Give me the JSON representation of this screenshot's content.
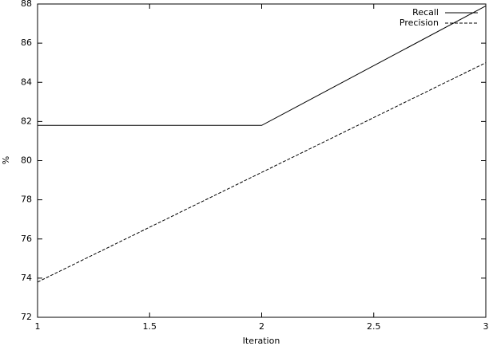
{
  "chart_data": {
    "type": "line",
    "x_label": "Iteration",
    "y_label": "%",
    "x": [
      1,
      2,
      3
    ],
    "series": [
      {
        "name": "Recall",
        "color": "#000000",
        "dash": "solid",
        "values": [
          81.8,
          81.8,
          87.9
        ]
      },
      {
        "name": "Precision",
        "color": "#000000",
        "dash": "dashed",
        "values": [
          73.8,
          79.4,
          85.0
        ]
      }
    ],
    "xlim": [
      1,
      3
    ],
    "xticks": [
      1,
      1.5,
      2,
      2.5,
      3
    ],
    "ylim": [
      72,
      88
    ],
    "yticks": [
      72,
      74,
      76,
      78,
      80,
      82,
      84,
      86,
      88
    ],
    "legend": "top-right"
  }
}
